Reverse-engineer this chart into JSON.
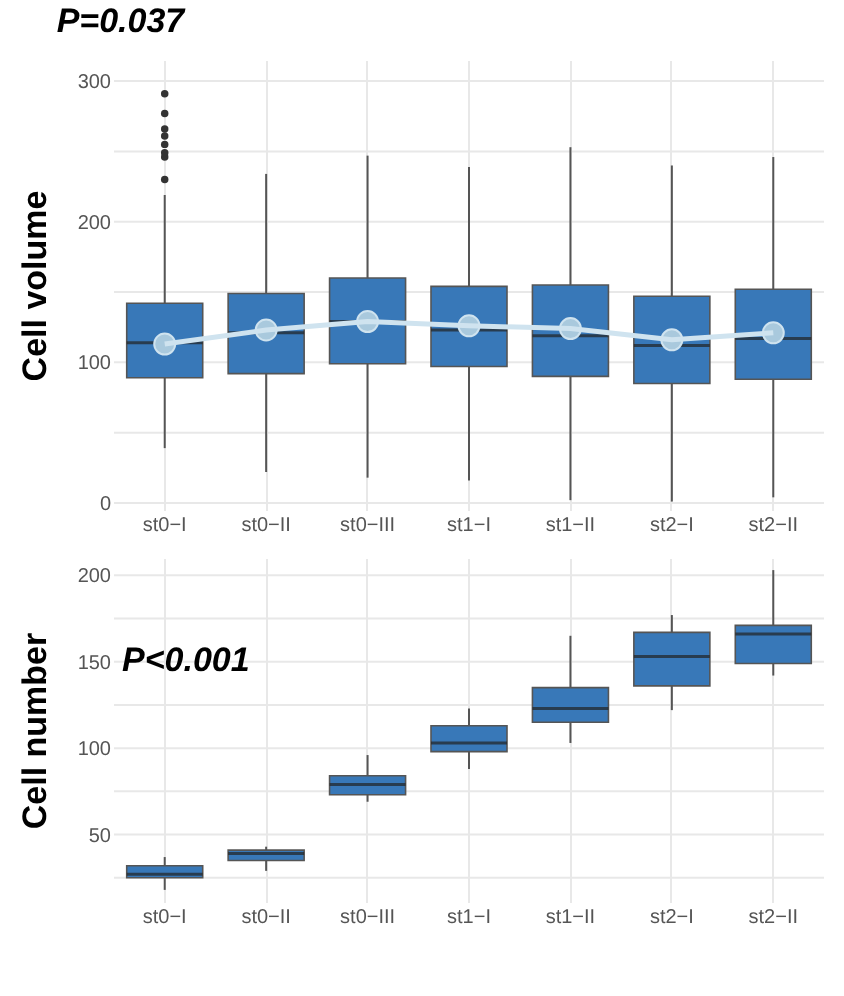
{
  "chart_data": [
    {
      "type": "box",
      "ylabel": "Cell volume",
      "categories": [
        "st0−I",
        "st0−II",
        "st0−III",
        "st1−I",
        "st1−II",
        "st2−I",
        "st2−II"
      ],
      "color": "#3878b8",
      "ylim": [
        -5,
        315
      ],
      "yticks": [
        {
          "value": 0,
          "label": "0"
        },
        {
          "value": 50,
          "label": null
        },
        {
          "value": 100,
          "label": "100"
        },
        {
          "value": 150,
          "label": null
        },
        {
          "value": 200,
          "label": "200"
        },
        {
          "value": 250,
          "label": null
        },
        {
          "value": 300,
          "label": "300"
        }
      ],
      "grid": true,
      "annotations": [
        "P=0.037"
      ],
      "boxes": [
        {
          "low": 39,
          "q1": 89,
          "median": 114,
          "q3": 142,
          "high": 219,
          "mean": 113,
          "outliers": [
            230,
            246,
            249,
            255,
            261,
            266,
            277,
            291
          ]
        },
        {
          "low": 22,
          "q1": 92,
          "median": 121,
          "q3": 149,
          "high": 234,
          "mean": 123
        },
        {
          "low": 18,
          "q1": 99,
          "median": 129,
          "q3": 160,
          "high": 247,
          "mean": 129
        },
        {
          "low": 16,
          "q1": 97,
          "median": 123,
          "q3": 154,
          "high": 239,
          "mean": 126
        },
        {
          "low": 2,
          "q1": 90,
          "median": 119,
          "q3": 155,
          "high": 253,
          "mean": 124
        },
        {
          "low": 1,
          "q1": 85,
          "median": 112,
          "q3": 147,
          "high": 240,
          "mean": 116
        },
        {
          "low": 4,
          "q1": 88,
          "median": 117,
          "q3": 152,
          "high": 246,
          "mean": 121
        }
      ],
      "series": [
        {
          "type": "line",
          "color": "#cfe3ef",
          "values": [
            113,
            123,
            129,
            126,
            124,
            116,
            121
          ]
        }
      ]
    },
    {
      "type": "box",
      "ylabel": "Cell number",
      "categories": [
        "st0−I",
        "st0−II",
        "st0−III",
        "st1−I",
        "st1−II",
        "st2−I",
        "st2−II"
      ],
      "color": "#3878b8",
      "ylim": [
        11,
        210
      ],
      "yticks": [
        {
          "value": 25,
          "label": null
        },
        {
          "value": 50,
          "label": "50"
        },
        {
          "value": 75,
          "label": null
        },
        {
          "value": 100,
          "label": "100"
        },
        {
          "value": 125,
          "label": null
        },
        {
          "value": 150,
          "label": "150"
        },
        {
          "value": 175,
          "label": null
        },
        {
          "value": 200,
          "label": "200"
        }
      ],
      "grid": true,
      "annotations": [
        "P<0.001"
      ],
      "boxes": [
        {
          "low": 18,
          "q1": 25,
          "median": 27,
          "q3": 32,
          "high": 37
        },
        {
          "low": 29,
          "q1": 35,
          "median": 39,
          "q3": 41,
          "high": 43
        },
        {
          "low": 69,
          "q1": 73,
          "median": 79,
          "q3": 84,
          "high": 96
        },
        {
          "low": 88,
          "q1": 98,
          "median": 103,
          "q3": 113,
          "high": 123
        },
        {
          "low": 103,
          "q1": 115,
          "median": 123,
          "q3": 135,
          "high": 165
        },
        {
          "low": 122,
          "q1": 136,
          "median": 153,
          "q3": 167,
          "high": 177
        },
        {
          "low": 142,
          "q1": 149,
          "median": 166,
          "q3": 171,
          "high": 203
        }
      ]
    }
  ]
}
